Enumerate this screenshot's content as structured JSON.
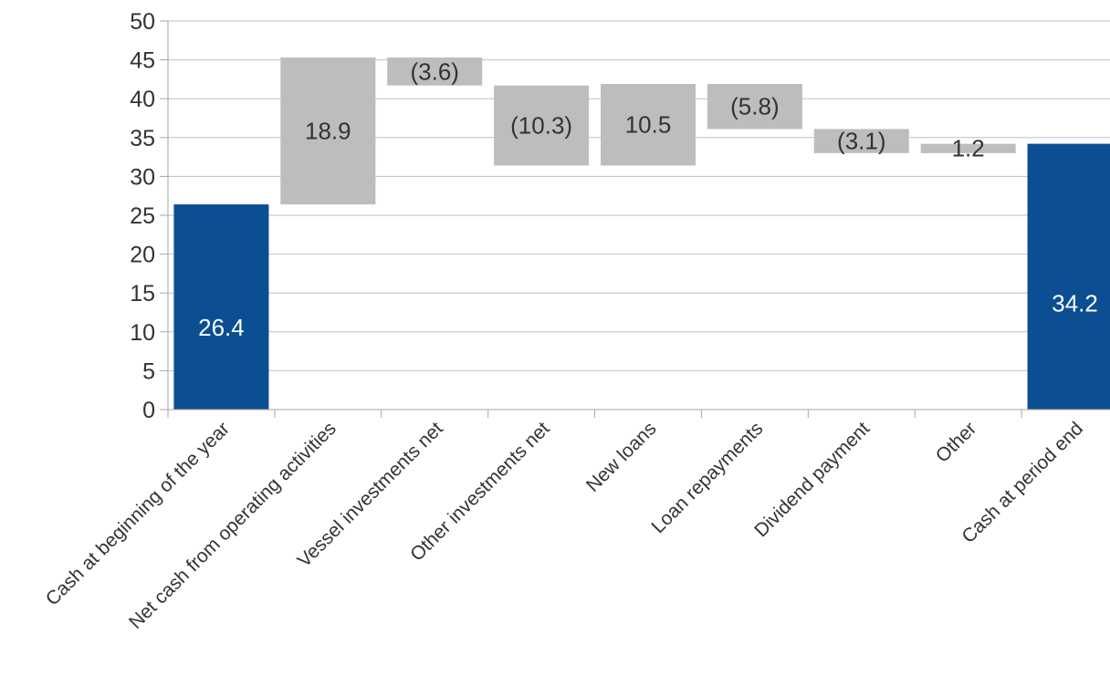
{
  "chart_data": {
    "type": "bar",
    "subtype": "waterfall",
    "title": "",
    "xlabel": "",
    "ylabel": "",
    "ylim": [
      0,
      50
    ],
    "yticks": [
      0,
      5,
      10,
      15,
      20,
      25,
      30,
      35,
      40,
      45,
      50
    ],
    "grid": true,
    "legend": "none",
    "categories": [
      "Cash at beginning of the year",
      "Net cash from operating activities",
      "Vessel investments net",
      "Other investments net",
      "New loans",
      "Loan repayments",
      "Dividend payment",
      "Other",
      "Cash at period end"
    ],
    "bars": [
      {
        "kind": "total",
        "start": 0,
        "end": 26.4,
        "label": "26.4"
      },
      {
        "kind": "delta",
        "start": 26.4,
        "end": 45.3,
        "label": "18.9"
      },
      {
        "kind": "delta",
        "start": 45.3,
        "end": 41.7,
        "label": "(3.6)"
      },
      {
        "kind": "delta",
        "start": 41.7,
        "end": 31.4,
        "label": "(10.3)"
      },
      {
        "kind": "delta",
        "start": 31.4,
        "end": 41.9,
        "label": "10.5"
      },
      {
        "kind": "delta",
        "start": 41.9,
        "end": 36.1,
        "label": "(5.8)"
      },
      {
        "kind": "delta",
        "start": 36.1,
        "end": 33.0,
        "label": "(3.1)"
      },
      {
        "kind": "delta",
        "start": 33.0,
        "end": 34.2,
        "label": "1.2"
      },
      {
        "kind": "total",
        "start": 0,
        "end": 34.2,
        "label": "34.2"
      }
    ],
    "colors": {
      "total": "#0c4e92",
      "delta": "#bdbdbd",
      "grid": "#bfbfbf",
      "axis": "#a6a6a6",
      "total_label": "#ffffff",
      "delta_label": "#333333"
    }
  }
}
